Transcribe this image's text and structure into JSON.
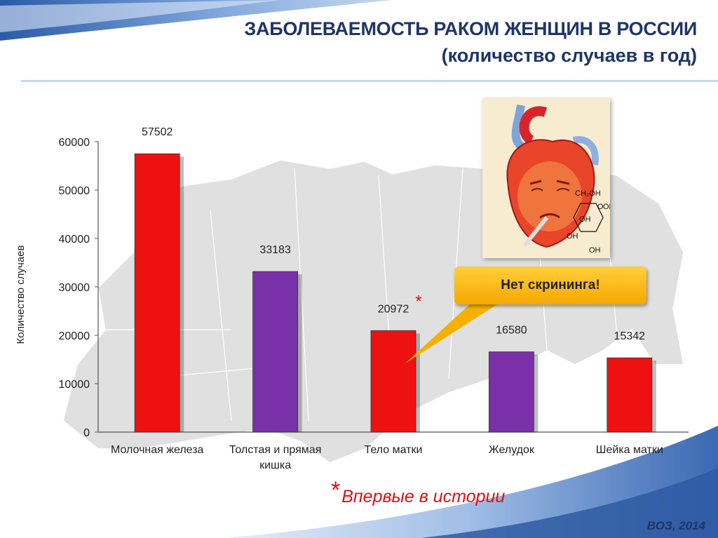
{
  "title": {
    "line1": "ЗАБОЛЕВАЕМОСТЬ РАКОМ ЖЕНЩИН В РОССИИ",
    "line2": "(количество случаев в год)"
  },
  "chart_data": {
    "type": "bar",
    "categories": [
      "Молочная железа",
      "Толстая и прямая кишка",
      "Тело матки",
      "Желудок",
      "Шейка матки"
    ],
    "category_lines": [
      [
        "Молочная железа"
      ],
      [
        "Толстая и прямая",
        "кишка"
      ],
      [
        "Тело матки"
      ],
      [
        "Желудок"
      ],
      [
        "Шейка матки"
      ]
    ],
    "values": [
      57502,
      33183,
      20972,
      16580,
      15342
    ],
    "bar_colors": [
      "#ee1111",
      "#7a30a8",
      "#ee1111",
      "#7a30a8",
      "#ee1111"
    ],
    "ylabel": "Количество случаев",
    "ylim": [
      0,
      60000
    ],
    "yticks": [
      0,
      10000,
      20000,
      30000,
      40000,
      50000,
      60000
    ],
    "marked_label_index": 2,
    "grid": false
  },
  "callout": {
    "text": "Нет скрининга!"
  },
  "footnote": {
    "star": "*",
    "text": "Впервые в истории"
  },
  "source": "ВОЗ, 2014",
  "heart_chem": {
    "ch2oh": "CH₂OH",
    "o": "O",
    "oh1": "OH",
    "oh2": "OH",
    "oh3": "OH",
    "oh4": "OH"
  }
}
